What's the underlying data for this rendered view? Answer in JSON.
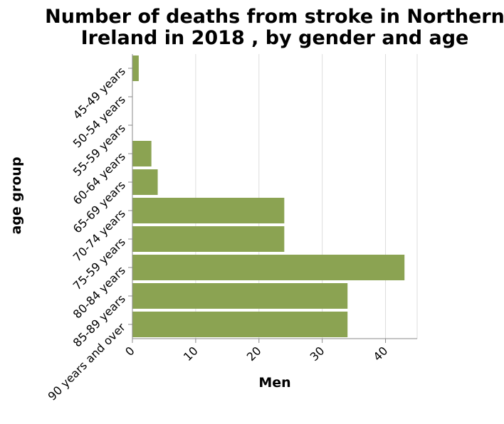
{
  "chart_data": {
    "type": "bar",
    "orientation": "horizontal",
    "title": [
      "Number of deaths from stroke in Northern",
      "Ireland in 2018 , by gender and age"
    ],
    "xlabel": "Men",
    "ylabel": "age group",
    "categories": [
      "45-49 years",
      "50-54 years",
      "55-59 years",
      "60-64 years",
      "65-69 years",
      "70-74 years",
      "75-59 years",
      "80-84 years",
      "85-89 years",
      "90 years and over"
    ],
    "values": [
      1,
      0,
      0,
      3,
      4,
      24,
      24,
      43,
      34,
      34
    ],
    "xlim": [
      0,
      45
    ],
    "xticks": [
      0,
      10,
      20,
      30,
      40
    ],
    "grid": true,
    "bar_color": "#8ba352"
  }
}
